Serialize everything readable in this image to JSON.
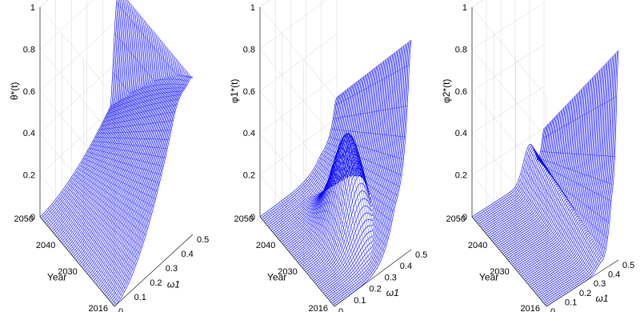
{
  "chart_data": [
    {
      "type": "surface",
      "zlabel": "θ*(t)",
      "xlabel": "ω1",
      "ylabel": "Year",
      "year_ticks": [
        "2016",
        "2030",
        "2040",
        "2050"
      ],
      "omega_ticks": [
        "0",
        "0.1",
        "0.2",
        "0.3",
        "0.4",
        "0.5"
      ],
      "z_ticks": [
        "0",
        "0.2",
        "0.4",
        "0.6",
        "0.8",
        "1"
      ],
      "zlim": [
        0,
        1
      ],
      "omega_range": [
        0,
        0.5
      ],
      "year_range": [
        2016,
        2050
      ],
      "color": "#0000ff",
      "grid": true,
      "surface_shape": "rises with ω1 to a ridge near 1.0 at low years, flat plateau 0.75 at high ω1"
    },
    {
      "type": "surface",
      "zlabel": "φ1*(t)",
      "xlabel": "ω1",
      "ylabel": "Year",
      "year_ticks": [
        "2016",
        "2030",
        "2040",
        "2050"
      ],
      "omega_ticks": [
        "0",
        "0.1",
        "0.2",
        "0.3",
        "0.4",
        "0.5"
      ],
      "z_ticks": [
        "0",
        "0.2",
        "0.4",
        "0.6",
        "0.8",
        "1"
      ],
      "zlim": [
        0,
        1
      ],
      "omega_range": [
        0,
        0.5
      ],
      "year_range": [
        2016,
        2050
      ],
      "color": "#0000ff",
      "grid": true,
      "surface_shape": "hump near 0.45 at mid years, curves up to 1.0 at the corner, dips toward 0.76"
    },
    {
      "type": "surface",
      "zlabel": "φ2*(t)",
      "xlabel": "ω1",
      "ylabel": "Year",
      "year_ticks": [
        "2016",
        "2030",
        "2040",
        "2050"
      ],
      "omega_ticks": [
        "0",
        "0.1",
        "0.2",
        "0.3",
        "0.4",
        "0.5"
      ],
      "z_ticks": [
        "0",
        "0.2",
        "0.4",
        "0.6",
        "0.8",
        "1"
      ],
      "zlim": [
        0,
        1
      ],
      "omega_range": [
        0,
        0.5
      ],
      "year_range": [
        2016,
        2050
      ],
      "color": "#0000ff",
      "grid": true,
      "surface_shape": "near 0 over most of the domain, sharp rise to 1.0 at the far corner, curves down to 0.78"
    }
  ]
}
